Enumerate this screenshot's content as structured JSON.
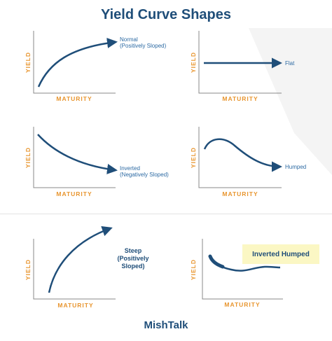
{
  "title": "Yield Curve Shapes",
  "footer": "MishTalk",
  "axis": {
    "x_label": "MATURITY",
    "y_label": "YIELD"
  },
  "panels": [
    {
      "id": "normal",
      "label_line1": "Normal",
      "label_line2": "(Positively Sloped)"
    },
    {
      "id": "flat",
      "label_line1": "Flat",
      "label_line2": ""
    },
    {
      "id": "inverted",
      "label_line1": "Inverted",
      "label_line2": "(Negatively Sloped)"
    },
    {
      "id": "humped",
      "label_line1": "Humped",
      "label_line2": ""
    },
    {
      "id": "steep",
      "label_line1": "Steep",
      "label_line2": "(Positively Sloped)"
    },
    {
      "id": "inverted-humped",
      "label_line1": "Inverted Humped",
      "label_line2": ""
    }
  ],
  "colors": {
    "curve": "#1f4e79",
    "axis_label": "#e8952e",
    "title": "#1f4e79",
    "highlight_box": "#fbf7c4"
  }
}
